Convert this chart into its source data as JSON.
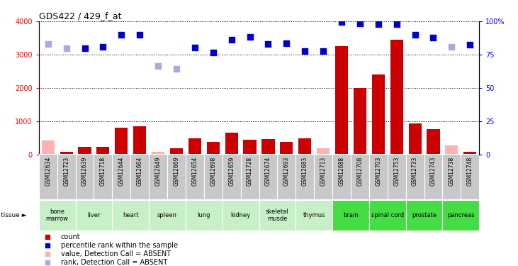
{
  "title": "GDS422 / 429_f_at",
  "samples": [
    "GSM12634",
    "GSM12723",
    "GSM12639",
    "GSM12718",
    "GSM12644",
    "GSM12664",
    "GSM12649",
    "GSM12669",
    "GSM12654",
    "GSM12698",
    "GSM12659",
    "GSM12728",
    "GSM12674",
    "GSM12693",
    "GSM12683",
    "GSM12713",
    "GSM12688",
    "GSM12708",
    "GSM12703",
    "GSM12753",
    "GSM12733",
    "GSM12743",
    "GSM12738",
    "GSM12748"
  ],
  "tissues": [
    {
      "name": "bone\nmarrow",
      "start": 0,
      "end": 2,
      "color": "#c8f0c8"
    },
    {
      "name": "liver",
      "start": 2,
      "end": 4,
      "color": "#c8f0c8"
    },
    {
      "name": "heart",
      "start": 4,
      "end": 6,
      "color": "#c8f0c8"
    },
    {
      "name": "spleen",
      "start": 6,
      "end": 8,
      "color": "#c8f0c8"
    },
    {
      "name": "lung",
      "start": 8,
      "end": 10,
      "color": "#c8f0c8"
    },
    {
      "name": "kidney",
      "start": 10,
      "end": 12,
      "color": "#c8f0c8"
    },
    {
      "name": "skeletal\nmusde",
      "start": 12,
      "end": 14,
      "color": "#c8f0c8"
    },
    {
      "name": "thymus",
      "start": 14,
      "end": 16,
      "color": "#c8f0c8"
    },
    {
      "name": "brain",
      "start": 16,
      "end": 18,
      "color": "#44dd44"
    },
    {
      "name": "spinal cord",
      "start": 18,
      "end": 20,
      "color": "#44dd44"
    },
    {
      "name": "prostate",
      "start": 20,
      "end": 22,
      "color": "#44dd44"
    },
    {
      "name": "pancreas",
      "start": 22,
      "end": 24,
      "color": "#44dd44"
    }
  ],
  "count_values": [
    420,
    80,
    230,
    230,
    800,
    840,
    80,
    190,
    490,
    370,
    650,
    430,
    450,
    380,
    490,
    175,
    3250,
    2000,
    2410,
    3450,
    920,
    760,
    270,
    80
  ],
  "absent_count": [
    true,
    false,
    false,
    false,
    false,
    false,
    true,
    false,
    false,
    false,
    false,
    false,
    false,
    false,
    false,
    true,
    false,
    false,
    false,
    false,
    false,
    false,
    true,
    false
  ],
  "rank_values": [
    83,
    79.5,
    79.75,
    81,
    89.75,
    89.75,
    66.25,
    64.25,
    80.5,
    76.75,
    86,
    88.25,
    83,
    83.5,
    77.75,
    77.5,
    99.5,
    98.5,
    98,
    97.75,
    90,
    88,
    81,
    82.25
  ],
  "absent_rank": [
    true,
    true,
    false,
    false,
    false,
    false,
    true,
    true,
    false,
    false,
    false,
    false,
    false,
    false,
    false,
    false,
    false,
    false,
    false,
    false,
    false,
    false,
    true,
    false
  ],
  "ylim_left": [
    0,
    4000
  ],
  "ylim_right": [
    0,
    100
  ],
  "yticks_left": [
    0,
    1000,
    2000,
    3000,
    4000
  ],
  "yticks_right": [
    0,
    25,
    50,
    75,
    100
  ],
  "ytick_labels_right": [
    "0",
    "25",
    "50",
    "75",
    "100%"
  ],
  "bar_color_present": "#cc0000",
  "bar_color_absent": "#ffb0b0",
  "rank_color_present": "#0000cc",
  "rank_color_absent": "#aaaadd",
  "sample_bg_color": "#c8c8c8",
  "sample_border_color": "#ffffff"
}
